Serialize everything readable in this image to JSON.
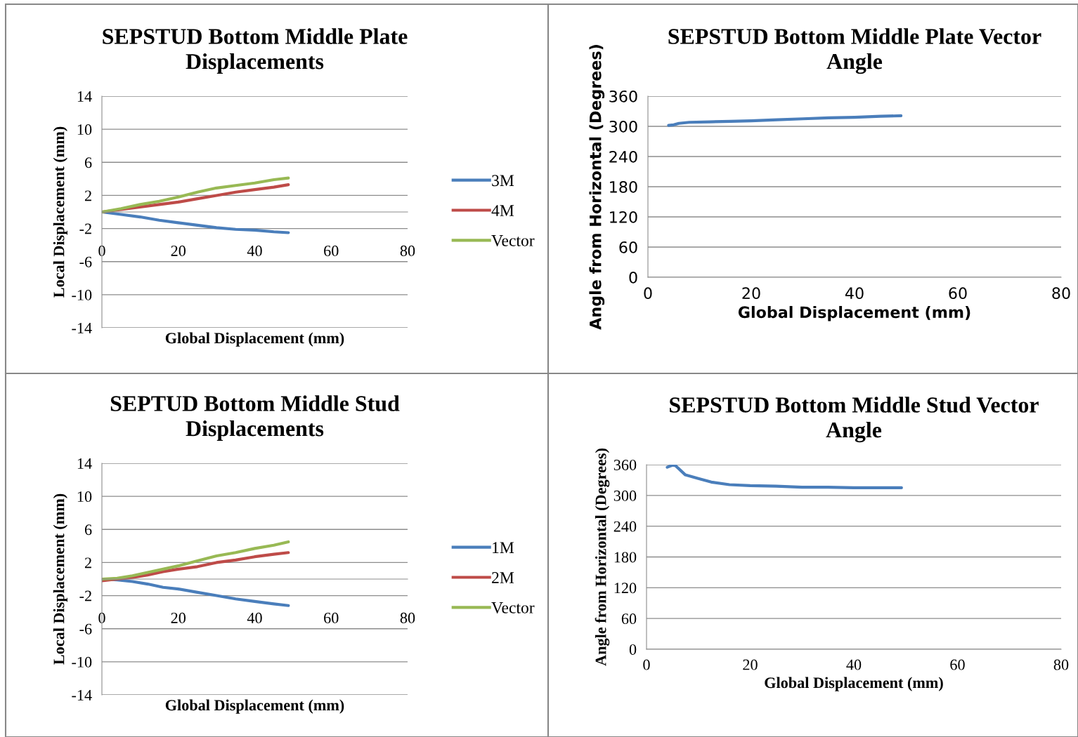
{
  "chart_data": [
    {
      "type": "line",
      "title": "SEPSTUD Bottom Middle Plate Displacements",
      "xlabel": "Global Displacement (mm)",
      "ylabel": "Local Displacement (mm)",
      "xlim": [
        0,
        80
      ],
      "xticks": [
        0,
        20,
        40,
        60,
        80
      ],
      "ylim": [
        -14,
        14
      ],
      "yticks": [
        -14,
        -10,
        -6,
        -2,
        2,
        6,
        10,
        14
      ],
      "grid": "y",
      "legend": "right",
      "marker": "none",
      "line_style": "solid",
      "series": [
        {
          "name": "3M",
          "color": "#4a7ebb",
          "x": [
            0,
            5,
            10,
            15,
            20,
            25,
            30,
            35,
            40,
            45,
            48.8
          ],
          "values": [
            0,
            -0.3,
            -0.6,
            -1.0,
            -1.3,
            -1.6,
            -1.9,
            -2.1,
            -2.2,
            -2.4,
            -2.5
          ]
        },
        {
          "name": "4M",
          "color": "#be4b48",
          "x": [
            0,
            5,
            10,
            15,
            20,
            25,
            30,
            35,
            40,
            45,
            48.8
          ],
          "values": [
            0,
            0.3,
            0.6,
            0.9,
            1.2,
            1.6,
            2.0,
            2.4,
            2.7,
            3.0,
            3.3
          ]
        },
        {
          "name": "Vector",
          "color": "#98b954",
          "x": [
            0,
            5,
            10,
            15,
            20,
            25,
            30,
            35,
            40,
            45,
            48.8
          ],
          "values": [
            0,
            0.4,
            0.9,
            1.3,
            1.8,
            2.4,
            2.9,
            3.2,
            3.5,
            3.9,
            4.1
          ]
        }
      ]
    },
    {
      "type": "line",
      "title": "SEPSTUD Bottom Middle Plate Vector Angle",
      "xlabel": "Global Displacement (mm)",
      "ylabel": "Angle from Horizontal (Degrees)",
      "xlim": [
        0,
        80
      ],
      "xticks": [
        0,
        20,
        40,
        60,
        80
      ],
      "ylim": [
        0,
        360
      ],
      "yticks": [
        0,
        60,
        120,
        180,
        240,
        300,
        360
      ],
      "grid": "y",
      "marker": "none",
      "line_style": "solid",
      "series": [
        {
          "color": "#4a7ebb",
          "x": [
            4.0,
            5.0,
            6.0,
            8,
            12,
            16,
            20,
            25,
            30,
            35,
            40,
            45,
            49
          ],
          "values": [
            302,
            303,
            306,
            308,
            309,
            310,
            311,
            313,
            315,
            317,
            318,
            320,
            321
          ]
        }
      ]
    },
    {
      "type": "line",
      "title": "SEPTUD Bottom Middle Stud Displacements",
      "xlabel": "Global Displacement (mm)",
      "ylabel": "Local Displacement (mm)",
      "xlim": [
        0,
        80
      ],
      "xticks": [
        0,
        20,
        40,
        60,
        80
      ],
      "ylim": [
        -14,
        14
      ],
      "yticks": [
        -14,
        -10,
        -6,
        -2,
        2,
        6,
        10,
        14
      ],
      "grid": "y",
      "legend": "right",
      "marker": "none",
      "line_style": "solid",
      "series": [
        {
          "name": "1M",
          "color": "#4a7ebb",
          "x": [
            0,
            4,
            8,
            12,
            16,
            20,
            25,
            30,
            35,
            40,
            45,
            48.8
          ],
          "values": [
            0,
            -0.1,
            -0.3,
            -0.6,
            -1.0,
            -1.2,
            -1.6,
            -2.0,
            -2.4,
            -2.7,
            -3.0,
            -3.2
          ]
        },
        {
          "name": "2M",
          "color": "#be4b48",
          "x": [
            0,
            4,
            8,
            12,
            16,
            20,
            25,
            30,
            35,
            40,
            45,
            48.8
          ],
          "values": [
            -0.2,
            0,
            0.2,
            0.5,
            0.9,
            1.2,
            1.5,
            2.0,
            2.3,
            2.7,
            3.0,
            3.2
          ]
        },
        {
          "name": "Vector",
          "color": "#98b954",
          "x": [
            0,
            4,
            8,
            12,
            16,
            20,
            25,
            30,
            35,
            40,
            45,
            48.8
          ],
          "values": [
            0,
            0.1,
            0.4,
            0.8,
            1.2,
            1.6,
            2.2,
            2.8,
            3.2,
            3.7,
            4.1,
            4.5
          ]
        }
      ]
    },
    {
      "type": "line",
      "title": "SEPSTUD Bottom Middle Stud Vector Angle",
      "xlabel": "Global Displacement (mm)",
      "ylabel": "Angle from Horizontal (Degrees)",
      "xlim": [
        0,
        80
      ],
      "xticks": [
        0,
        20,
        40,
        60,
        80
      ],
      "ylim": [
        0,
        360
      ],
      "yticks": [
        0,
        60,
        120,
        180,
        240,
        300,
        360
      ],
      "grid": "y",
      "marker": "none",
      "line_style": "solid",
      "series": [
        {
          "color": "#4a7ebb",
          "x": [
            4.0,
            5.0,
            5.6,
            7.5,
            10,
            12.5,
            16,
            20,
            25,
            30,
            35,
            40,
            45,
            49.2
          ],
          "values": [
            355,
            359,
            358,
            340,
            333,
            326,
            321,
            319,
            318,
            316,
            316,
            315,
            315,
            315
          ]
        }
      ]
    }
  ]
}
